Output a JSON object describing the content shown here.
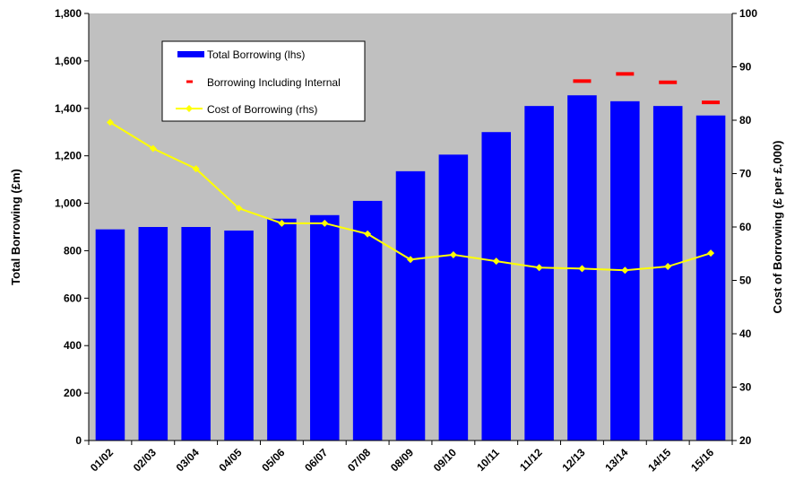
{
  "chart_data": {
    "type": "bar",
    "categories": [
      "01/02",
      "02/03",
      "03/04",
      "04/05",
      "05/06",
      "06/07",
      "07/08",
      "08/09",
      "09/10",
      "10/11",
      "11/12",
      "12/13",
      "13/14",
      "14/15",
      "15/16"
    ],
    "ylabel": "Total Borrowing (£m)",
    "y2label": "Cost of Borrowing (£ per £,000)",
    "ylim": [
      0,
      1800
    ],
    "y2lim": [
      20,
      100
    ],
    "yticks": [
      "0",
      "200",
      "400",
      "600",
      "800",
      "1,000",
      "1,200",
      "1,400",
      "1,600",
      "1,800"
    ],
    "y2ticks": [
      "20",
      "30",
      "40",
      "50",
      "60",
      "70",
      "80",
      "90",
      "100"
    ],
    "grid": false,
    "legend_position": "top-left",
    "series": [
      {
        "name": "Total Borrowing (lhs)",
        "type": "bar",
        "axis": "left",
        "color": "#0000ff",
        "values": [
          890,
          900,
          900,
          885,
          935,
          950,
          1010,
          1135,
          1205,
          1300,
          1410,
          1455,
          1430,
          1410,
          1370
        ]
      },
      {
        "name": "Borrowing Including Internal",
        "type": "marker",
        "axis": "left",
        "color": "#ff0000",
        "values": [
          null,
          null,
          null,
          null,
          null,
          null,
          null,
          null,
          null,
          null,
          null,
          1515,
          1545,
          1510,
          1425
        ]
      },
      {
        "name": "Cost of Borrowing (rhs)",
        "type": "line",
        "axis": "right",
        "color": "#ffff00",
        "values": [
          79.6,
          74.7,
          70.9,
          63.5,
          60.7,
          60.7,
          58.7,
          53.9,
          54.8,
          53.6,
          52.4,
          52.2,
          51.9,
          52.6,
          55.1
        ]
      }
    ]
  },
  "colors": {
    "plot_background": "#c0c0c0",
    "bar": "#0000ff",
    "marker": "#ff0000",
    "line": "#ffff00"
  }
}
